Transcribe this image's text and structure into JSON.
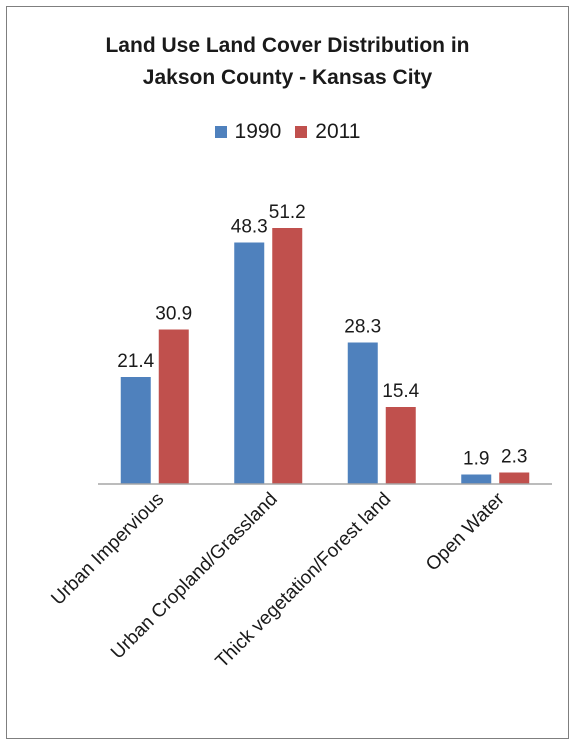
{
  "colors": {
    "series_1990": "#4f81bd",
    "series_2011": "#c0504d",
    "axis": "#a6a6a6"
  },
  "chart_data": {
    "type": "bar",
    "title_lines": [
      "Land Use Land Cover Distribution  in",
      "Jakson County - Kansas City"
    ],
    "categories": [
      "Urban Impervious",
      "Urban Cropland/Grassland",
      "Thick vegetation/Forest land",
      "Open Water"
    ],
    "series": [
      {
        "name": "1990",
        "values": [
          21.4,
          48.3,
          28.3,
          1.9
        ]
      },
      {
        "name": "2011",
        "values": [
          30.9,
          51.2,
          15.4,
          2.3
        ]
      }
    ],
    "data_labels": true,
    "legend_position": "top",
    "ylim": [
      0,
      51.2
    ],
    "grid": false
  }
}
